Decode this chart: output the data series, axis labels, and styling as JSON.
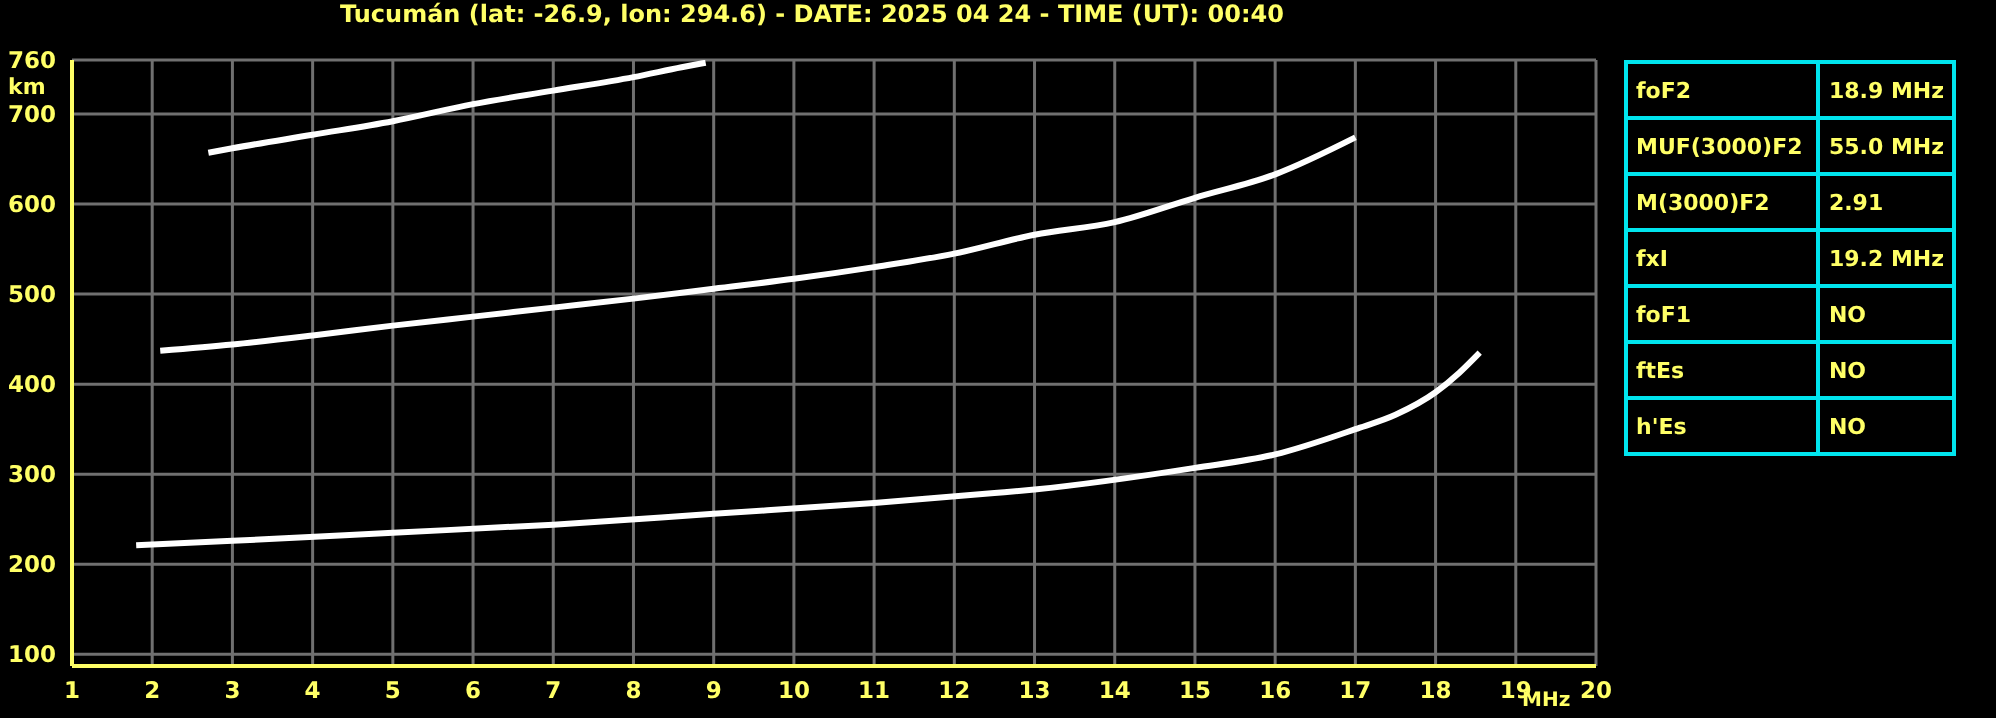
{
  "chart_data": [
    {
      "type": "line",
      "title": "Tucumán (lat: -26.9, lon: 294.6) - DATE: 2025 04 24 - TIME (UT): 00:40",
      "xlabel": "MHz",
      "ylabel": "km",
      "xlim": [
        1,
        20
      ],
      "xticks": [
        1,
        2,
        3,
        4,
        5,
        6,
        7,
        8,
        9,
        10,
        11,
        12,
        13,
        14,
        15,
        16,
        17,
        18,
        19,
        20
      ],
      "ylim": [
        87,
        760
      ],
      "yticks": [
        100,
        200,
        300,
        400,
        500,
        600,
        700,
        760
      ],
      "grid": true,
      "marker": "none",
      "line_style": "solid",
      "series": [
        {
          "color": "#ffffff",
          "x": [
            1.8,
            3,
            5,
            7,
            9,
            11,
            12.5,
            13,
            15,
            16,
            17,
            17.5,
            18,
            18.3,
            18.55
          ],
          "values": [
            221,
            226,
            235,
            244,
            256,
            268,
            279,
            283,
            307,
            322,
            350,
            366,
            391,
            413,
            435
          ]
        },
        {
          "color": "#ffffff",
          "x": [
            2.1,
            3,
            4,
            5,
            6,
            7,
            8,
            9,
            10,
            11,
            12,
            13,
            14,
            15,
            16,
            17
          ],
          "values": [
            437,
            444,
            454,
            465,
            475,
            485,
            495,
            506,
            517,
            530,
            545,
            566,
            580,
            607,
            633,
            674
          ]
        },
        {
          "color": "#ffffff",
          "x": [
            2.7,
            3,
            4,
            5,
            6,
            7,
            8,
            8.6,
            8.9
          ],
          "values": [
            657,
            662,
            677,
            692,
            711,
            726,
            741,
            752,
            757
          ]
        }
      ]
    },
    {
      "type": "other",
      "annotations": [
        "foF2",
        "18.9 MHz",
        "MUF(3000)F2",
        "55.0 MHz",
        "M(3000)F2",
        "2.91",
        "fxI",
        "19.2 MHz",
        "foF1",
        "NO",
        "ftEs",
        "NO",
        "h'Es",
        "NO"
      ]
    }
  ]
}
